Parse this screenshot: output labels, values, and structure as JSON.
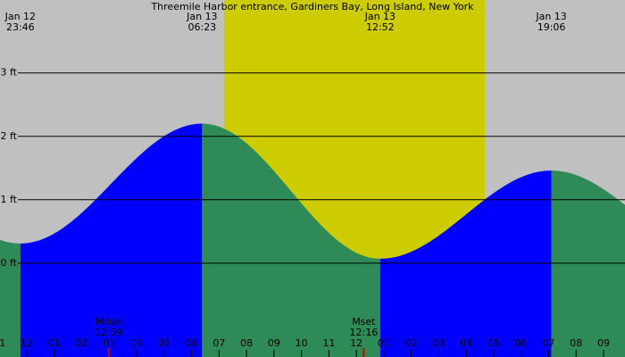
{
  "chart_data": {
    "type": "tide",
    "title": "Threemile Harbor entrance, Gardiners Bay, Long Island, New York",
    "x": [
      -0.233,
      6.383,
      12.867,
      19.1
    ],
    "dates": [
      "Jan 12",
      "Jan 13",
      "Jan 13",
      "Jan 13"
    ],
    "times": [
      "23:46",
      "06:23",
      "12:52",
      "19:06"
    ],
    "values": [
      0.31,
      2.2,
      0.07,
      1.46
    ],
    "xlim": [
      -0.975,
      21.78
    ],
    "ylim": [
      -1.48,
      4.15
    ],
    "yticks": [
      {
        "value": 0,
        "label": "0 ft"
      },
      {
        "value": 1,
        "label": "1 ft"
      },
      {
        "value": 2,
        "label": "2 ft"
      },
      {
        "value": 3,
        "label": "3 ft"
      }
    ],
    "xticks": [
      {
        "value": -1,
        "label": "11"
      },
      {
        "value": 0,
        "label": "12"
      },
      {
        "value": 1,
        "label": "01"
      },
      {
        "value": 2,
        "label": "02"
      },
      {
        "value": 3,
        "label": "03"
      },
      {
        "value": 4,
        "label": "04"
      },
      {
        "value": 5,
        "label": "05"
      },
      {
        "value": 6,
        "label": "06"
      },
      {
        "value": 7,
        "label": "07"
      },
      {
        "value": 8,
        "label": "08"
      },
      {
        "value": 9,
        "label": "09"
      },
      {
        "value": 10,
        "label": "10"
      },
      {
        "value": 11,
        "label": "11"
      },
      {
        "value": 12,
        "label": "12"
      },
      {
        "value": 13,
        "label": "01"
      },
      {
        "value": 14,
        "label": "02"
      },
      {
        "value": 15,
        "label": "03"
      },
      {
        "value": 16,
        "label": "04"
      },
      {
        "value": 17,
        "label": "05"
      },
      {
        "value": 18,
        "label": "06"
      },
      {
        "value": 19,
        "label": "07"
      },
      {
        "value": 20,
        "label": "08"
      },
      {
        "value": 21,
        "label": "09"
      }
    ],
    "daylight": [
      7.18,
      16.68
    ],
    "day_color": "#cccc00",
    "rising_color": "#0000ff",
    "falling_color": "#2e8b57",
    "moon": {
      "labels": [
        "Mrise",
        "Mset"
      ],
      "times": [
        "02:59",
        "12:16"
      ],
      "x": [
        2.983,
        12.267
      ],
      "color": "#cc0000"
    }
  }
}
